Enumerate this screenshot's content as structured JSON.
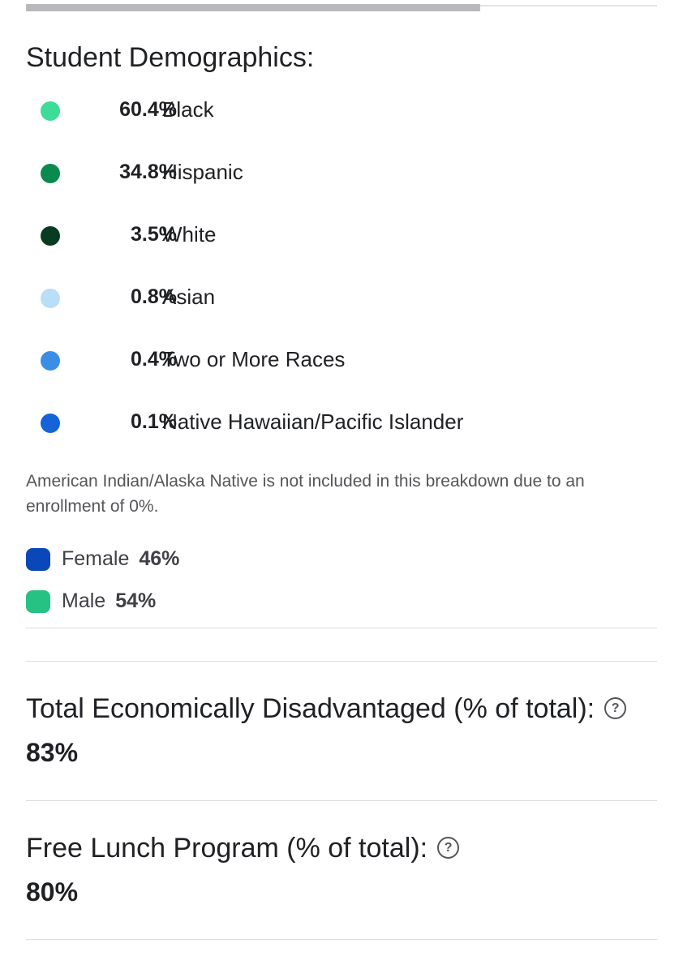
{
  "progress": {
    "fraction": 0.72
  },
  "demographics": {
    "title": "Student Demographics:",
    "items": [
      {
        "pct": "60.4%",
        "label": "Black",
        "color": "#3ddc97"
      },
      {
        "pct": "34.8%",
        "label": "Hispanic",
        "color": "#0b8a4f"
      },
      {
        "pct": "3.5%",
        "label": "White",
        "color": "#083c22"
      },
      {
        "pct": "0.8%",
        "label": "Asian",
        "color": "#b8def8"
      },
      {
        "pct": "0.4%",
        "label": "Two or More Races",
        "color": "#3a8ee6"
      },
      {
        "pct": "0.1%",
        "label": "Native Hawaiian/Pacific Islander",
        "color": "#1463d8"
      }
    ],
    "note": "American Indian/Alaska Native is not included in this breakdown due to an enrollment of 0%."
  },
  "gender": [
    {
      "label": "Female",
      "value": "46%",
      "color": "#0a47b8"
    },
    {
      "label": "Male",
      "value": "54%",
      "color": "#25c283"
    }
  ],
  "economically_disadvantaged": {
    "title": "Total Economically Disadvantaged (% of total):",
    "value": "83%",
    "help_icon": "help-circle-icon"
  },
  "free_lunch": {
    "title": "Free Lunch Program (% of total):",
    "value": "80%",
    "help_icon": "help-circle-icon"
  }
}
